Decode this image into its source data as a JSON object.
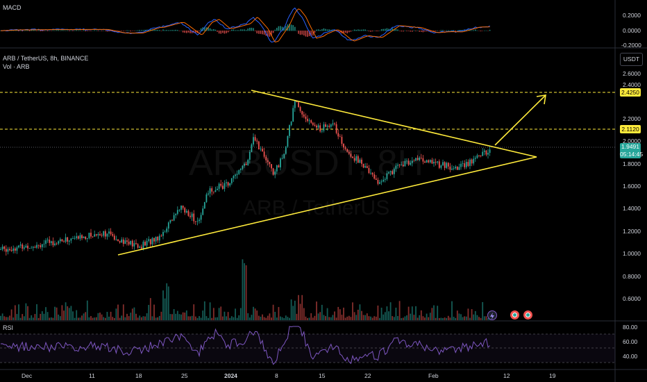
{
  "panes": {
    "macd": {
      "title": "MACD",
      "ticks": [
        "0.2000",
        "0.0000",
        "-0.2000"
      ]
    },
    "price": {
      "symbol_line": "ARB / TetherUS, 8h, BINANCE",
      "volume_line": "Vol · ARB",
      "currency_button": "USDT",
      "ticks": [
        "2.6000",
        "2.4000",
        "2.2000",
        "2.0000",
        "1.8000",
        "1.6000",
        "1.4000",
        "1.2000",
        "1.0000",
        "0.8000",
        "0.6000"
      ],
      "resistance_1": "2.4250",
      "resistance_2": "2.1120",
      "current_price": "1.9491",
      "countdown": "05:14:45",
      "watermark_main": "ARBUSDT, 8H",
      "watermark_sub": "ARB / TetherUS"
    },
    "rsi": {
      "title": "RSI",
      "ticks": [
        "80.00",
        "60.00",
        "40.00"
      ]
    }
  },
  "time_axis": {
    "labels": [
      "Dec",
      "11",
      "18",
      "25",
      "2024",
      "8",
      "15",
      "22",
      "Feb",
      "12",
      "19"
    ]
  },
  "colors": {
    "up": "#26a69a",
    "down": "#ef5350",
    "trendline": "#ffeb3b",
    "macd_line": "#2962ff",
    "signal_line": "#ff6d00",
    "rsi_line": "#7e57c2",
    "background": "#000000"
  },
  "icons": {
    "lightning": "lightning-icon",
    "earnings_a": "flag-icon",
    "earnings_b": "flag-icon"
  }
}
